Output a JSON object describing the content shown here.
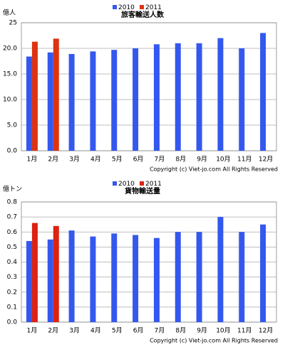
{
  "chart_data": [
    {
      "type": "bar",
      "title": "旅客輸送人数",
      "y_label": "億人",
      "annotation": "Copyright (c) Viet-jo.com All Rights Reserved",
      "categories": [
        "1月",
        "2月",
        "3月",
        "4月",
        "5月",
        "6月",
        "7月",
        "8月",
        "9月",
        "10月",
        "11月",
        "12月"
      ],
      "series": [
        {
          "name": "2010",
          "color": "#3458ee",
          "values": [
            18.4,
            19.2,
            18.9,
            19.4,
            19.7,
            20.0,
            20.8,
            21.0,
            21.0,
            22.0,
            20.0,
            23.0
          ]
        },
        {
          "name": "2011",
          "color": "#dd3311",
          "values": [
            21.3,
            21.9,
            null,
            null,
            null,
            null,
            null,
            null,
            null,
            null,
            null,
            null
          ]
        }
      ],
      "ylim": [
        0,
        25
      ],
      "yticks": [
        {
          "value": 0,
          "label": "0.0"
        },
        {
          "value": 5,
          "label": "5.0"
        },
        {
          "value": 10,
          "label": "10.0"
        },
        {
          "value": 15,
          "label": "15.0"
        },
        {
          "value": 20,
          "label": "20.0"
        },
        25
      ],
      "grid": true
    },
    {
      "type": "bar",
      "title": "貨物輸送量",
      "y_label": "億トン",
      "annotation": "Copyright (c) Viet-jo.com All Rights Reserved",
      "categories": [
        "1月",
        "2月",
        "3月",
        "4月",
        "5月",
        "6月",
        "7月",
        "8月",
        "9月",
        "10月",
        "11月",
        "12月"
      ],
      "series": [
        {
          "name": "2010",
          "color": "#3458ee",
          "values": [
            0.54,
            0.55,
            0.61,
            0.57,
            0.59,
            0.58,
            0.56,
            0.6,
            0.6,
            0.7,
            0.6,
            0.65
          ]
        },
        {
          "name": "2011",
          "color": "#dd2211",
          "values": [
            0.66,
            0.64,
            null,
            null,
            null,
            null,
            null,
            null,
            null,
            null,
            null,
            null
          ]
        }
      ],
      "ylim": [
        0,
        0.8
      ],
      "yticks": [
        {
          "value": 0,
          "label": "0.0"
        },
        0.1,
        0.2,
        0.3,
        0.4,
        0.5,
        0.6,
        0.7,
        0.8
      ],
      "grid": true
    }
  ]
}
